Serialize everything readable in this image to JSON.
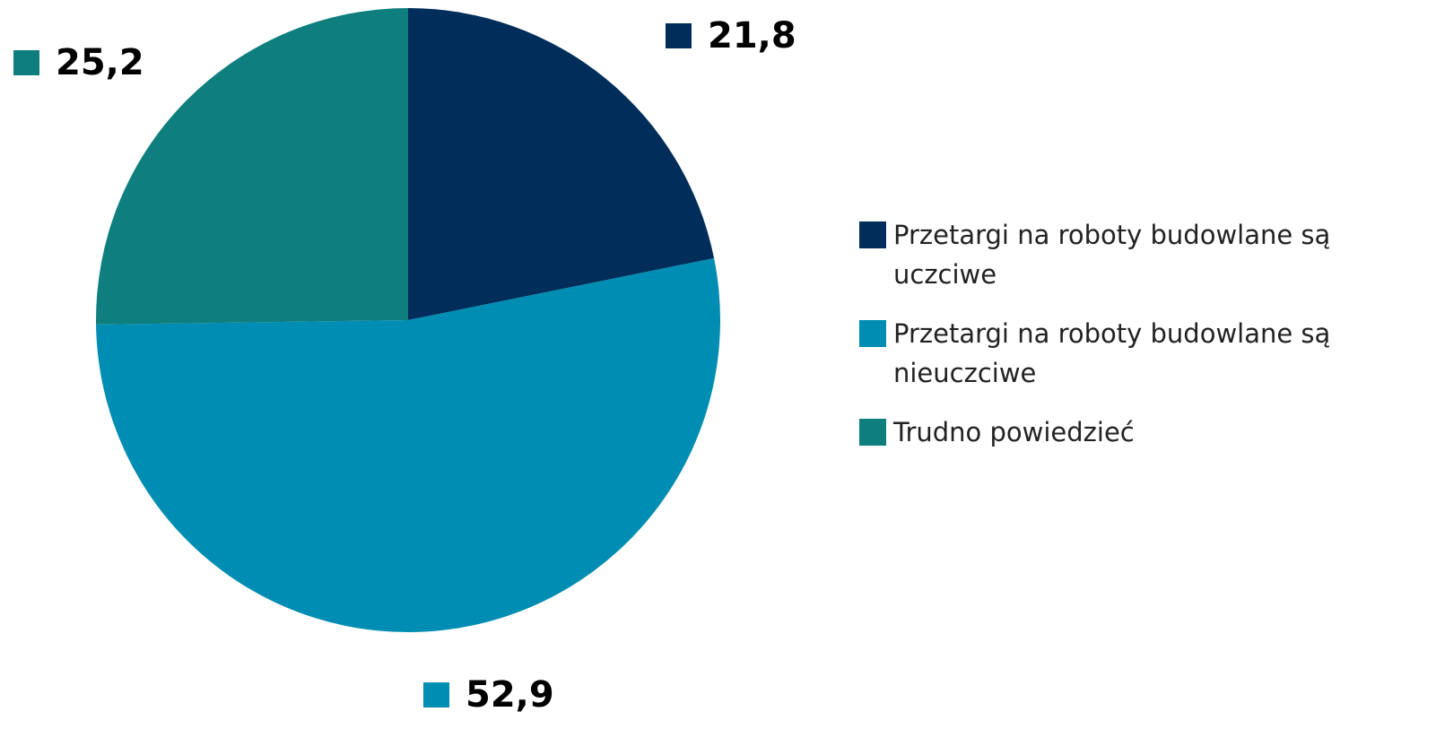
{
  "chart_data": {
    "type": "pie",
    "categories": [
      "Przetargi na roboty budowlane są uczciwe",
      "Przetargi na roboty budowlane są nieuczciwe",
      "Trudno powiedzieć"
    ],
    "values": [
      21.8,
      52.9,
      25.2
    ],
    "value_labels": [
      "21,8",
      "52,9",
      "25,2"
    ],
    "colors": [
      "#002d5a",
      "#008db3",
      "#0e7f7e"
    ],
    "legend": "right"
  }
}
